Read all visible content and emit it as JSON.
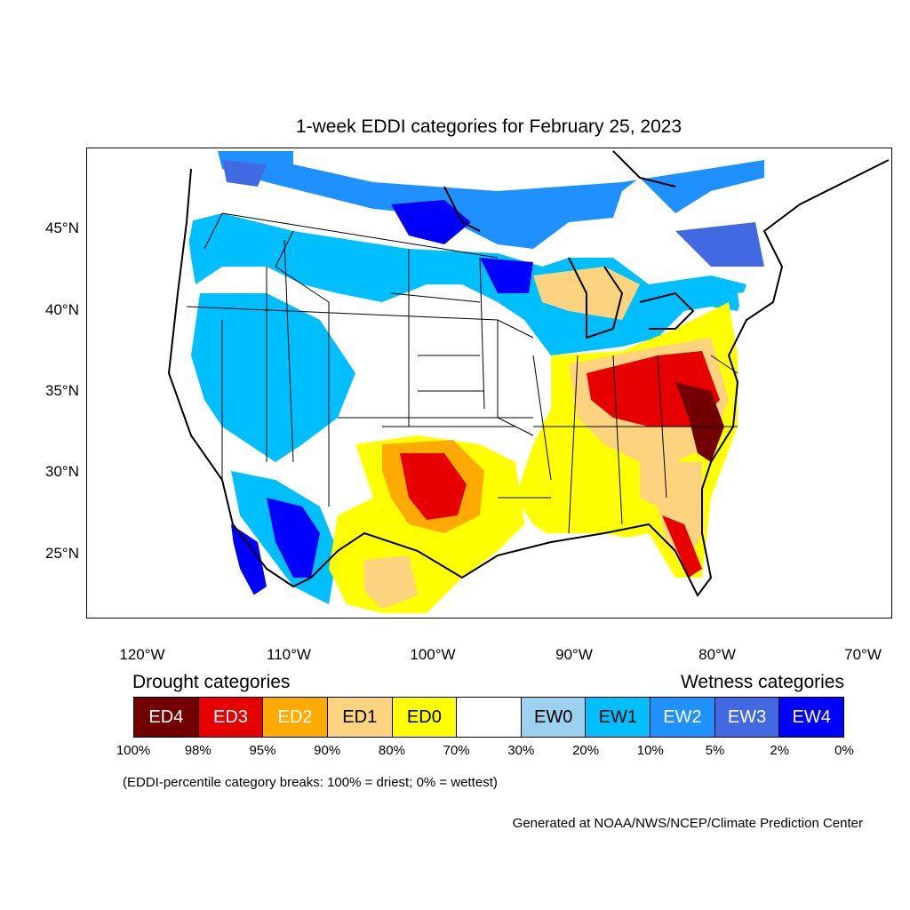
{
  "title": "1-week EDDI categories for February 25, 2023",
  "latitude_labels": [
    "45°N",
    "40°N",
    "35°N",
    "30°N",
    "25°N"
  ],
  "longitude_labels": [
    "120°W",
    "110°W",
    "100°W",
    "90°W",
    "80°W",
    "70°W"
  ],
  "legend": {
    "drought_heading": "Drought categories",
    "wetness_heading": "Wetness categories",
    "categories": [
      {
        "label": "ED4",
        "color": "#730000",
        "text_color": "#ffffff"
      },
      {
        "label": "ED3",
        "color": "#e60000",
        "text_color": "#ffffff"
      },
      {
        "label": "ED2",
        "color": "#ffaa00",
        "text_color": "#ffffff"
      },
      {
        "label": "ED1",
        "color": "#fcd37f",
        "text_color": "#000000"
      },
      {
        "label": "ED0",
        "color": "#ffff00",
        "text_color": "#000000"
      },
      {
        "label": "",
        "color": "#ffffff",
        "text_color": "#000000"
      },
      {
        "label": "EW0",
        "color": "#9bd0ee",
        "text_color": "#000000"
      },
      {
        "label": "EW1",
        "color": "#00bfff",
        "text_color": "#000000"
      },
      {
        "label": "EW2",
        "color": "#1e90ff",
        "text_color": "#ffffff"
      },
      {
        "label": "EW3",
        "color": "#4169e1",
        "text_color": "#ffffff"
      },
      {
        "label": "EW4",
        "color": "#0000ff",
        "text_color": "#ffffff"
      }
    ],
    "percent_breaks": [
      "100%",
      "98%",
      "95%",
      "90%",
      "80%",
      "70%",
      "30%",
      "20%",
      "10%",
      "5%",
      "2%",
      "0%"
    ]
  },
  "note": "(EDDI-percentile category breaks: 100% = driest; 0% = wettest)",
  "credit": "Generated at NOAA/NWS/NCEP/Climate Prediction Center"
}
